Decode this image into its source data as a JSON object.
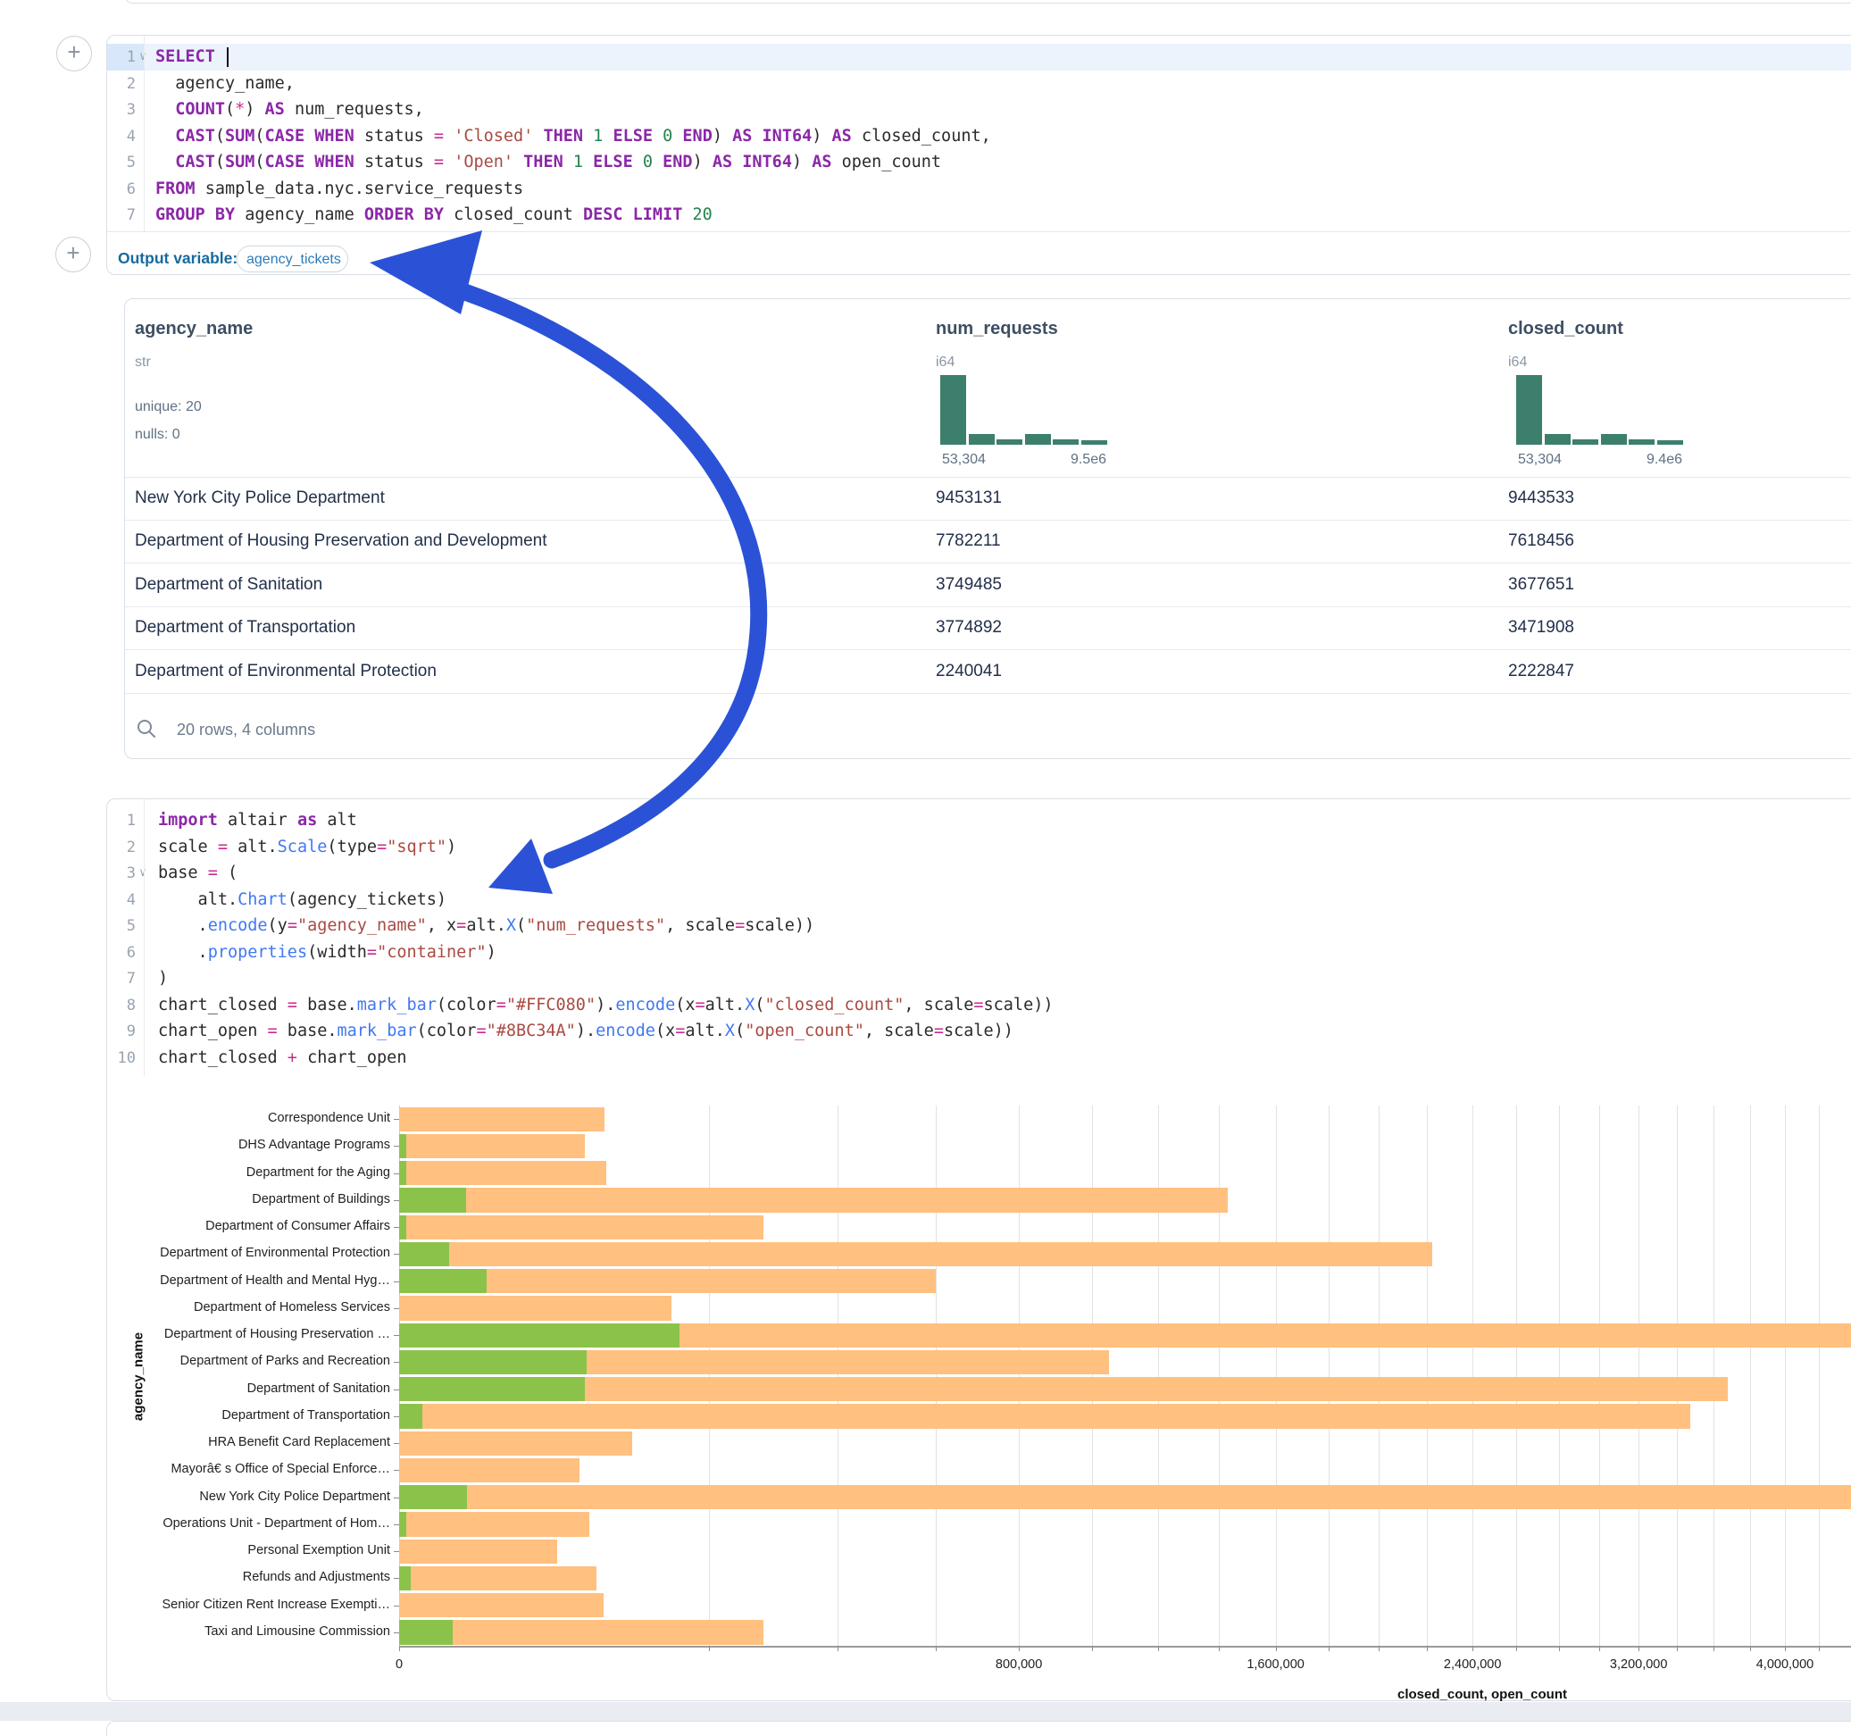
{
  "colors": {
    "card_border": "#d9dfe7",
    "histogram_bar": "#3d7f6d",
    "closed_bar": "#FFC080",
    "open_bar": "#8BC34A",
    "annotation_arrow": "#2B52D6",
    "active_line": "#ecf3fd"
  },
  "sql_cell": {
    "line_numbers": [
      "1",
      "2",
      "3",
      "4",
      "5",
      "6",
      "7"
    ],
    "caret_lines": [
      1
    ],
    "cursor_line": 1,
    "lines": [
      [
        [
          "k",
          "SELECT"
        ],
        [
          "p",
          " "
        ]
      ],
      [
        [
          "p",
          "  agency_name,"
        ]
      ],
      [
        [
          "p",
          "  "
        ],
        [
          "k",
          "COUNT"
        ],
        [
          "p",
          "("
        ],
        [
          "o",
          "*"
        ],
        [
          "p",
          ") "
        ],
        [
          "k",
          "AS"
        ],
        [
          "p",
          " num_requests,"
        ]
      ],
      [
        [
          "p",
          "  "
        ],
        [
          "k",
          "CAST"
        ],
        [
          "p",
          "("
        ],
        [
          "k",
          "SUM"
        ],
        [
          "p",
          "("
        ],
        [
          "k",
          "CASE"
        ],
        [
          "p",
          " "
        ],
        [
          "k",
          "WHEN"
        ],
        [
          "p",
          " status "
        ],
        [
          "o",
          "="
        ],
        [
          "p",
          " "
        ],
        [
          "s",
          "'Closed'"
        ],
        [
          "p",
          " "
        ],
        [
          "k",
          "THEN"
        ],
        [
          "p",
          " "
        ],
        [
          "n",
          "1"
        ],
        [
          "p",
          " "
        ],
        [
          "k",
          "ELSE"
        ],
        [
          "p",
          " "
        ],
        [
          "n",
          "0"
        ],
        [
          "p",
          " "
        ],
        [
          "k",
          "END"
        ],
        [
          "p",
          ") "
        ],
        [
          "k",
          "AS"
        ],
        [
          "p",
          " "
        ],
        [
          "k",
          "INT64"
        ],
        [
          "p",
          ") "
        ],
        [
          "k",
          "AS"
        ],
        [
          "p",
          " closed_count,"
        ]
      ],
      [
        [
          "p",
          "  "
        ],
        [
          "k",
          "CAST"
        ],
        [
          "p",
          "("
        ],
        [
          "k",
          "SUM"
        ],
        [
          "p",
          "("
        ],
        [
          "k",
          "CASE"
        ],
        [
          "p",
          " "
        ],
        [
          "k",
          "WHEN"
        ],
        [
          "p",
          " status "
        ],
        [
          "o",
          "="
        ],
        [
          "p",
          " "
        ],
        [
          "s",
          "'Open'"
        ],
        [
          "p",
          " "
        ],
        [
          "k",
          "THEN"
        ],
        [
          "p",
          " "
        ],
        [
          "n",
          "1"
        ],
        [
          "p",
          " "
        ],
        [
          "k",
          "ELSE"
        ],
        [
          "p",
          " "
        ],
        [
          "n",
          "0"
        ],
        [
          "p",
          " "
        ],
        [
          "k",
          "END"
        ],
        [
          "p",
          ") "
        ],
        [
          "k",
          "AS"
        ],
        [
          "p",
          " "
        ],
        [
          "k",
          "INT64"
        ],
        [
          "p",
          ") "
        ],
        [
          "k",
          "AS"
        ],
        [
          "p",
          " open_count"
        ]
      ],
      [
        [
          "k",
          "FROM"
        ],
        [
          "p",
          " sample_data.nyc.service_requests"
        ]
      ],
      [
        [
          "k",
          "GROUP BY"
        ],
        [
          "p",
          " agency_name "
        ],
        [
          "k",
          "ORDER BY"
        ],
        [
          "p",
          " closed_count "
        ],
        [
          "k",
          "DESC"
        ],
        [
          "p",
          " "
        ],
        [
          "k",
          "LIMIT"
        ],
        [
          "p",
          " "
        ],
        [
          "n",
          "20"
        ]
      ]
    ],
    "output_variable_label": "Output variable:",
    "output_variable_value": "agency_tickets"
  },
  "python_cell": {
    "line_numbers": [
      "1",
      "2",
      "3",
      "4",
      "5",
      "6",
      "7",
      "8",
      "9",
      "10"
    ],
    "caret_lines": [
      3
    ],
    "lines": [
      [
        [
          "k",
          "import"
        ],
        [
          "p",
          " altair "
        ],
        [
          "k",
          "as"
        ],
        [
          "p",
          " alt"
        ]
      ],
      [
        [
          "p",
          "scale "
        ],
        [
          "o",
          "="
        ],
        [
          "p",
          " alt."
        ],
        [
          "f",
          "Scale"
        ],
        [
          "p",
          "(type"
        ],
        [
          "o",
          "="
        ],
        [
          "s",
          "\"sqrt\""
        ],
        [
          "p",
          ")"
        ]
      ],
      [
        [
          "p",
          "base "
        ],
        [
          "o",
          "="
        ],
        [
          "p",
          " ("
        ]
      ],
      [
        [
          "p",
          "    alt."
        ],
        [
          "f",
          "Chart"
        ],
        [
          "p",
          "(agency_tickets)"
        ]
      ],
      [
        [
          "p",
          "    ."
        ],
        [
          "f",
          "encode"
        ],
        [
          "p",
          "(y"
        ],
        [
          "o",
          "="
        ],
        [
          "s",
          "\"agency_name\""
        ],
        [
          "p",
          ", x"
        ],
        [
          "o",
          "="
        ],
        [
          "p",
          "alt."
        ],
        [
          "f",
          "X"
        ],
        [
          "p",
          "("
        ],
        [
          "s",
          "\"num_requests\""
        ],
        [
          "p",
          ", scale"
        ],
        [
          "o",
          "="
        ],
        [
          "p",
          "scale))"
        ]
      ],
      [
        [
          "p",
          "    ."
        ],
        [
          "f",
          "properties"
        ],
        [
          "p",
          "(width"
        ],
        [
          "o",
          "="
        ],
        [
          "s",
          "\"container\""
        ],
        [
          "p",
          ")"
        ]
      ],
      [
        [
          "p",
          ")"
        ]
      ],
      [
        [
          "p",
          "chart_closed "
        ],
        [
          "o",
          "="
        ],
        [
          "p",
          " base."
        ],
        [
          "f",
          "mark_bar"
        ],
        [
          "p",
          "(color"
        ],
        [
          "o",
          "="
        ],
        [
          "s",
          "\"#FFC080\""
        ],
        [
          "p",
          ")."
        ],
        [
          "f",
          "encode"
        ],
        [
          "p",
          "(x"
        ],
        [
          "o",
          "="
        ],
        [
          "p",
          "alt."
        ],
        [
          "f",
          "X"
        ],
        [
          "p",
          "("
        ],
        [
          "s",
          "\"closed_count\""
        ],
        [
          "p",
          ", scale"
        ],
        [
          "o",
          "="
        ],
        [
          "p",
          "scale))"
        ]
      ],
      [
        [
          "p",
          "chart_open "
        ],
        [
          "o",
          "="
        ],
        [
          "p",
          " base."
        ],
        [
          "f",
          "mark_bar"
        ],
        [
          "p",
          "(color"
        ],
        [
          "o",
          "="
        ],
        [
          "s",
          "\"#8BC34A\""
        ],
        [
          "p",
          ")."
        ],
        [
          "f",
          "encode"
        ],
        [
          "p",
          "(x"
        ],
        [
          "o",
          "="
        ],
        [
          "p",
          "alt."
        ],
        [
          "f",
          "X"
        ],
        [
          "p",
          "("
        ],
        [
          "s",
          "\"open_count\""
        ],
        [
          "p",
          ", scale"
        ],
        [
          "o",
          "="
        ],
        [
          "p",
          "scale))"
        ]
      ],
      [
        [
          "p",
          "chart_closed "
        ],
        [
          "o",
          "+"
        ],
        [
          "p",
          " chart_open"
        ]
      ]
    ]
  },
  "table": {
    "columns": [
      {
        "name": "agency_name",
        "type": "str",
        "stats": [
          "unique: 20",
          "nulls: 0"
        ]
      },
      {
        "name": "num_requests",
        "type": "i64",
        "hist": {
          "heights": [
            78,
            12,
            6,
            12,
            6,
            5
          ],
          "min_label": "53,304",
          "max_label": "9.5e6"
        }
      },
      {
        "name": "closed_count",
        "type": "i64",
        "hist": {
          "heights": [
            78,
            12,
            6,
            12,
            6,
            5
          ],
          "min_label": "53,304",
          "max_label": "9.4e6"
        }
      }
    ],
    "rows": [
      [
        "New York City Police Department",
        "9453131",
        "9443533"
      ],
      [
        "Department of Housing Preservation and Development",
        "7782211",
        "7618456"
      ],
      [
        "Department of Sanitation",
        "3749485",
        "3677651"
      ],
      [
        "Department of Transportation",
        "3774892",
        "3471908"
      ],
      [
        "Department of Environmental Protection",
        "2240041",
        "2222847"
      ]
    ],
    "footer": "20 rows, 4 columns"
  },
  "chart_data": {
    "type": "bar",
    "orientation": "horizontal",
    "stacking": "layered",
    "x_scale": "sqrt",
    "grid": true,
    "legend": false,
    "xlabel": "closed_count, open_count",
    "ylabel": "agency_name",
    "x_gridline_step": 200000,
    "x_axis_max": 4000000,
    "x_ticks": [
      {
        "value": 0,
        "label": "0"
      },
      {
        "value": 800000,
        "label": "800,000"
      },
      {
        "value": 1600000,
        "label": "1,600,000"
      },
      {
        "value": 2400000,
        "label": "2,400,000"
      },
      {
        "value": 3200000,
        "label": "3,200,000"
      },
      {
        "value": 4000000,
        "label": "4,000,000"
      }
    ],
    "categories": [
      "Correspondence Unit",
      "DHS Advantage Programs",
      "Department for the Aging",
      "Department of Buildings",
      "Department of Consumer Affairs",
      "Department of Environmental Protection",
      "Department of Health and Mental Hyg…",
      "Department of Homeless Services",
      "Department of Housing Preservation …",
      "Department of Parks and Recreation",
      "Department of Sanitation",
      "Department of Transportation",
      "HRA Benefit Card Replacement",
      "Mayorâ€ s Office of Special Enforce…",
      "New York City Police Department",
      "Operations Unit - Department of Hom…",
      "Personal Exemption Unit",
      "Refunds and Adjustments",
      "Senior Citizen Rent Increase Exempti…",
      "Taxi and Limousine Commission"
    ],
    "series": [
      {
        "name": "closed_count",
        "color": "#FFC080",
        "values": [
          88000,
          72000,
          89000,
          1430000,
          277000,
          2222847,
          600000,
          154000,
          7618456,
          1050000,
          3677651,
          3471908,
          113000,
          68000,
          9443533,
          75000,
          52000,
          81000,
          87000,
          277000
        ]
      },
      {
        "name": "open_count",
        "color": "#8BC34A",
        "values": [
          0,
          100,
          100,
          9300,
          100,
          5200,
          16000,
          0,
          163755,
          73000,
          71834,
          1100,
          0,
          0,
          9598,
          100,
          0,
          300,
          0,
          6000
        ]
      }
    ]
  }
}
